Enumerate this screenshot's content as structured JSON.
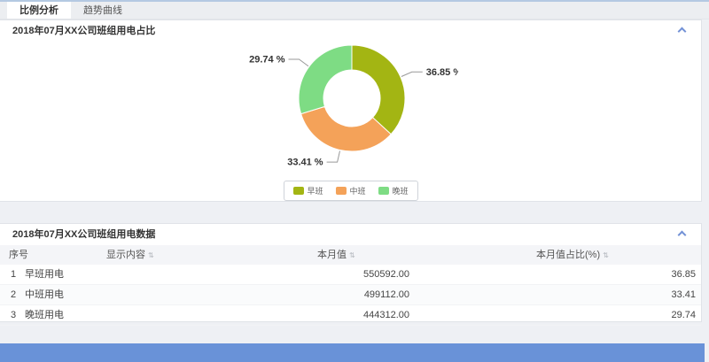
{
  "tabs": [
    {
      "label": "比例分析",
      "active": true
    },
    {
      "label": "趋势曲线",
      "active": false
    }
  ],
  "chart_panel": {
    "title": "2018年07月XX公司班组用电占比"
  },
  "table_panel": {
    "title": "2018年07月XX公司班组用电数据"
  },
  "chart_data": {
    "type": "pie",
    "donut": true,
    "title": "2018年07月XX公司班组用电占比",
    "categories": [
      "早班",
      "中班",
      "晚班"
    ],
    "values": [
      36.85,
      33.41,
      29.74
    ],
    "value_labels": [
      "36.85 %",
      "33.41 %",
      "29.74 %"
    ],
    "colors": [
      "#a3b513",
      "#f4a259",
      "#7edc84"
    ],
    "legend": [
      "早班",
      "中班",
      "晚班"
    ],
    "legend_position": "bottom"
  },
  "table": {
    "headers": [
      {
        "label": "序号",
        "sortable": false
      },
      {
        "label": "显示内容",
        "sortable": true
      },
      {
        "label": "本月值",
        "sortable": true
      },
      {
        "label": "本月值占比(%)",
        "sortable": true
      }
    ],
    "rows": [
      {
        "index": "1",
        "content": "早班用电",
        "month_value": "550592.00",
        "month_pct": "36.85"
      },
      {
        "index": "2",
        "content": "中班用电",
        "month_value": "499112.00",
        "month_pct": "33.41"
      },
      {
        "index": "3",
        "content": "晚班用电",
        "month_value": "444312.00",
        "month_pct": "29.74"
      }
    ]
  },
  "icons": {
    "collapse": "chevron-up-icon",
    "sort": "sort-arrows-icon"
  },
  "colors": {
    "accent_blue": "#7291d6",
    "footer_blue": "#6992d8",
    "top_border": "#b4c9e2",
    "page_bg": "#eef0f4",
    "slice_morning": "#a3b513",
    "slice_middle": "#f4a259",
    "slice_evening": "#7edc84"
  }
}
